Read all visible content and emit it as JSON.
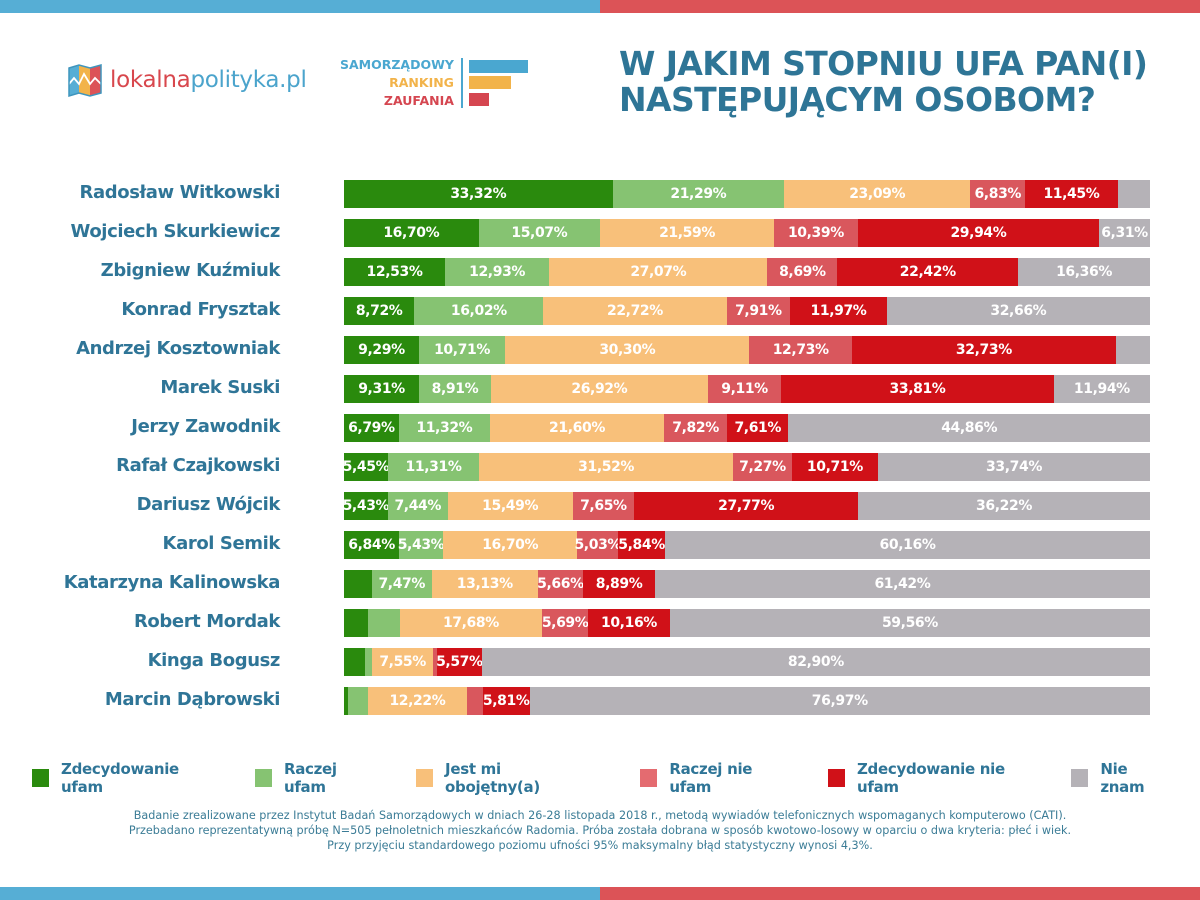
{
  "header": {
    "logo_text_part1": "lokalna",
    "logo_text_part2": "polityka.pl",
    "ranking_words": [
      "SAMORZĄDOWY",
      "RANKING",
      "ZAUFANIA"
    ],
    "title_line1": "W JAKIM STOPNIU UFA PAN(I)",
    "title_line2": "NASTĘPUJĄCYM OSOBOM?"
  },
  "colors": {
    "brand_blue": "#56aed5",
    "brand_red": "#dc5357",
    "brand_yellow": "#f2b34a",
    "title_blue": "#2e7596"
  },
  "chart_data": {
    "type": "bar",
    "orientation": "horizontal",
    "stacked": true,
    "normalized": true,
    "title": "W JAKIM STOPNIU UFA PAN(I) NASTĘPUJĄCYM OSOBOM?",
    "xlabel": "",
    "ylabel": "",
    "xlim": [
      0,
      100
    ],
    "unit": "%",
    "grid": false,
    "legend_position": "bottom",
    "categories": [
      "Radosław Witkowski",
      "Wojciech Skurkiewicz",
      "Zbigniew Kuźmiuk",
      "Konrad Frysztak",
      "Andrzej Kosztowniak",
      "Marek Suski",
      "Jerzy Zawodnik",
      "Rafał Czajkowski",
      "Dariusz Wójcik",
      "Karol Semik",
      "Katarzyna Kalinowska",
      "Robert Mordak",
      "Kinga Bogusz",
      "Marcin Dąbrowski"
    ],
    "series": [
      {
        "name": "Zdecydowanie ufam",
        "color": "#2a8a0d",
        "values": [
          33.32,
          16.7,
          12.53,
          8.72,
          9.29,
          9.31,
          6.79,
          5.45,
          5.43,
          6.84,
          3.43,
          2.96,
          2.6,
          0.5
        ],
        "labels": [
          "33,32%",
          "16,70%",
          "12,53%",
          "8,72%",
          "9,29%",
          "9,31%",
          "6,79%",
          "5,45%",
          "5,43%",
          "6,84%",
          "",
          "",
          "",
          ""
        ]
      },
      {
        "name": "Raczej ufam",
        "color": "#86c372",
        "values": [
          21.29,
          15.07,
          12.93,
          16.02,
          10.71,
          8.91,
          11.32,
          11.31,
          7.44,
          5.43,
          7.47,
          3.95,
          0.9,
          2.5
        ],
        "labels": [
          "21,29%",
          "15,07%",
          "12,93%",
          "16,02%",
          "10,71%",
          "8,91%",
          "11,32%",
          "11,31%",
          "7,44%",
          "5,43%",
          "7,47%",
          "",
          "",
          ""
        ]
      },
      {
        "name": "Jest mi obojętny(a)",
        "color": "#f8c07a",
        "values": [
          23.09,
          21.59,
          27.07,
          22.72,
          30.3,
          26.92,
          21.6,
          31.52,
          15.49,
          16.7,
          13.13,
          17.68,
          7.55,
          12.22
        ],
        "labels": [
          "23,09%",
          "21,59%",
          "27,07%",
          "22,72%",
          "30,30%",
          "26,92%",
          "21,60%",
          "31,52%",
          "15,49%",
          "16,70%",
          "13,13%",
          "17,68%",
          "7,55%",
          "12,22%"
        ]
      },
      {
        "name": "Raczej nie ufam",
        "color": "#d9575d",
        "values": [
          6.83,
          10.39,
          8.69,
          7.91,
          12.73,
          9.11,
          7.82,
          7.27,
          7.65,
          5.03,
          5.66,
          5.69,
          0.48,
          2.0
        ],
        "labels": [
          "6,83%",
          "10,39%",
          "8,69%",
          "7,91%",
          "12,73%",
          "9,11%",
          "7,82%",
          "7,27%",
          "7,65%",
          "5,03%",
          "5,66%",
          "5,69%",
          "",
          ""
        ]
      },
      {
        "name": "Zdecydowanie nie ufam",
        "color": "#d01118",
        "values": [
          11.45,
          29.94,
          22.42,
          11.97,
          32.73,
          33.81,
          7.61,
          10.71,
          27.77,
          5.84,
          8.89,
          10.16,
          5.57,
          5.81
        ],
        "labels": [
          "11,45%",
          "29,94%",
          "22,42%",
          "11,97%",
          "32,73%",
          "33,81%",
          "7,61%",
          "10,71%",
          "27,77%",
          "5,84%",
          "8,89%",
          "10,16%",
          "5,57%",
          "5,81%"
        ]
      },
      {
        "name": "Nie znam",
        "color": "#b5b2b7",
        "values": [
          4.02,
          6.31,
          16.36,
          32.66,
          4.24,
          11.94,
          44.86,
          33.74,
          36.22,
          60.16,
          61.42,
          59.56,
          82.9,
          76.97
        ],
        "labels": [
          "",
          "6,31%",
          "16,36%",
          "32,66%",
          "",
          "11,94%",
          "44,86%",
          "33,74%",
          "36,22%",
          "60,16%",
          "61,42%",
          "59,56%",
          "82,90%",
          "76,97%"
        ]
      }
    ]
  },
  "legend": [
    {
      "label": "Zdecydowanie ufam",
      "color": "#2a8a0d"
    },
    {
      "label": "Raczej ufam",
      "color": "#86c372"
    },
    {
      "label": "Jest mi obojętny(a)",
      "color": "#f8c07a"
    },
    {
      "label": "Raczej nie ufam",
      "color": "#e46b70"
    },
    {
      "label": "Zdecydowanie nie ufam",
      "color": "#d01118"
    },
    {
      "label": "Nie znam",
      "color": "#b5b2b7"
    }
  ],
  "footnote": {
    "line1": "Badanie zrealizowane przez Instytut Badań Samorządowych w dniach 26-28 listopada 2018 r., metodą wywiadów telefonicznych wspomaganych komputerowo (CATI).",
    "line2": "Przebadano reprezentatywną próbę N=505 pełnoletnich mieszkańców Radomia. Próba została dobrana w sposób kwotowo-losowy w oparciu o dwa kryteria: płeć i wiek.",
    "line3": "Przy przyjęciu standardowego poziomu ufności 95% maksymalny błąd statystyczny wynosi 4,3%."
  }
}
